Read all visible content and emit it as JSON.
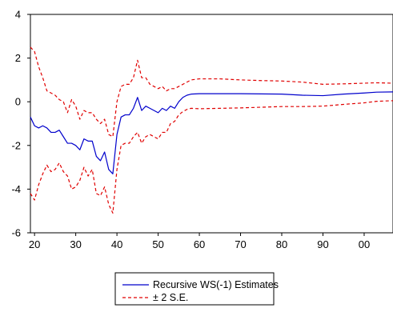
{
  "chart_data": {
    "type": "line",
    "title": "",
    "xlabel": "",
    "ylabel": "",
    "xlim": [
      1919,
      2007
    ],
    "ylim": [
      -6,
      4
    ],
    "x_tick_values": [
      1920,
      1930,
      1940,
      1950,
      1960,
      1970,
      1980,
      1990,
      2000
    ],
    "x_tick_labels": [
      "20",
      "30",
      "40",
      "50",
      "60",
      "70",
      "80",
      "90",
      "00"
    ],
    "y_tick_values": [
      -6,
      -4,
      -2,
      0,
      2,
      4
    ],
    "y_tick_labels": [
      "-6",
      "-4",
      "-2",
      "0",
      "2",
      "4"
    ],
    "grid": false,
    "legend_position": "bottom-center",
    "legend": [
      {
        "label": "Recursive WS(-1) Estimates",
        "color": "#0000cc",
        "dash": "solid"
      },
      {
        "label": "± 2 S.E.",
        "color": "#e00000",
        "dash": "dashed"
      }
    ],
    "series": [
      {
        "name": "Recursive WS(-1) Estimates",
        "color": "#0000cc",
        "points": [
          [
            1919,
            -0.7
          ],
          [
            1920,
            -1.1
          ],
          [
            1921,
            -1.2
          ],
          [
            1922,
            -1.1
          ],
          [
            1923,
            -1.2
          ],
          [
            1924,
            -1.4
          ],
          [
            1925,
            -1.4
          ],
          [
            1926,
            -1.3
          ],
          [
            1927,
            -1.6
          ],
          [
            1928,
            -1.9
          ],
          [
            1929,
            -1.9
          ],
          [
            1930,
            -2.0
          ],
          [
            1931,
            -2.2
          ],
          [
            1932,
            -1.7
          ],
          [
            1933,
            -1.8
          ],
          [
            1934,
            -1.8
          ],
          [
            1935,
            -2.5
          ],
          [
            1936,
            -2.7
          ],
          [
            1937,
            -2.3
          ],
          [
            1938,
            -3.1
          ],
          [
            1939,
            -3.3
          ],
          [
            1940,
            -1.5
          ],
          [
            1941,
            -0.7
          ],
          [
            1942,
            -0.6
          ],
          [
            1943,
            -0.6
          ],
          [
            1944,
            -0.3
          ],
          [
            1945,
            0.2
          ],
          [
            1946,
            -0.4
          ],
          [
            1947,
            -0.2
          ],
          [
            1948,
            -0.3
          ],
          [
            1949,
            -0.4
          ],
          [
            1950,
            -0.5
          ],
          [
            1951,
            -0.3
          ],
          [
            1952,
            -0.4
          ],
          [
            1953,
            -0.2
          ],
          [
            1954,
            -0.3
          ],
          [
            1955,
            0.0
          ],
          [
            1956,
            0.2
          ],
          [
            1957,
            0.3
          ],
          [
            1958,
            0.35
          ],
          [
            1960,
            0.37
          ],
          [
            1965,
            0.37
          ],
          [
            1970,
            0.37
          ],
          [
            1975,
            0.36
          ],
          [
            1980,
            0.35
          ],
          [
            1985,
            0.3
          ],
          [
            1990,
            0.28
          ],
          [
            1995,
            0.35
          ],
          [
            2000,
            0.4
          ],
          [
            2003,
            0.44
          ],
          [
            2007,
            0.45
          ]
        ]
      },
      {
        "name": "+2 S.E.",
        "color": "#e00000",
        "points": [
          [
            1919,
            2.5
          ],
          [
            1920,
            2.3
          ],
          [
            1921,
            1.6
          ],
          [
            1922,
            1.1
          ],
          [
            1923,
            0.5
          ],
          [
            1924,
            0.4
          ],
          [
            1925,
            0.3
          ],
          [
            1926,
            0.1
          ],
          [
            1927,
            0.0
          ],
          [
            1928,
            -0.5
          ],
          [
            1929,
            0.1
          ],
          [
            1930,
            -0.2
          ],
          [
            1931,
            -0.8
          ],
          [
            1932,
            -0.4
          ],
          [
            1933,
            -0.5
          ],
          [
            1934,
            -0.5
          ],
          [
            1935,
            -0.8
          ],
          [
            1936,
            -1.0
          ],
          [
            1937,
            -0.8
          ],
          [
            1938,
            -1.5
          ],
          [
            1939,
            -1.6
          ],
          [
            1940,
            0.0
          ],
          [
            1941,
            0.7
          ],
          [
            1942,
            0.8
          ],
          [
            1943,
            0.8
          ],
          [
            1944,
            1.1
          ],
          [
            1945,
            1.9
          ],
          [
            1946,
            1.1
          ],
          [
            1947,
            1.1
          ],
          [
            1948,
            0.8
          ],
          [
            1949,
            0.7
          ],
          [
            1950,
            0.6
          ],
          [
            1951,
            0.7
          ],
          [
            1952,
            0.5
          ],
          [
            1953,
            0.6
          ],
          [
            1954,
            0.6
          ],
          [
            1955,
            0.7
          ],
          [
            1956,
            0.8
          ],
          [
            1957,
            0.9
          ],
          [
            1958,
            1.0
          ],
          [
            1960,
            1.05
          ],
          [
            1965,
            1.05
          ],
          [
            1970,
            1.0
          ],
          [
            1975,
            0.97
          ],
          [
            1980,
            0.95
          ],
          [
            1985,
            0.9
          ],
          [
            1990,
            0.8
          ],
          [
            1995,
            0.82
          ],
          [
            2000,
            0.85
          ],
          [
            2003,
            0.87
          ],
          [
            2007,
            0.85
          ]
        ]
      },
      {
        "name": "-2 S.E.",
        "color": "#e00000",
        "points": [
          [
            1919,
            -4.2
          ],
          [
            1920,
            -4.5
          ],
          [
            1921,
            -3.8
          ],
          [
            1922,
            -3.3
          ],
          [
            1923,
            -2.9
          ],
          [
            1924,
            -3.2
          ],
          [
            1925,
            -3.1
          ],
          [
            1926,
            -2.8
          ],
          [
            1927,
            -3.2
          ],
          [
            1928,
            -3.4
          ],
          [
            1929,
            -4.0
          ],
          [
            1930,
            -3.9
          ],
          [
            1931,
            -3.6
          ],
          [
            1932,
            -3.0
          ],
          [
            1933,
            -3.4
          ],
          [
            1934,
            -3.1
          ],
          [
            1935,
            -4.2
          ],
          [
            1936,
            -4.3
          ],
          [
            1937,
            -3.9
          ],
          [
            1938,
            -4.7
          ],
          [
            1939,
            -5.1
          ],
          [
            1940,
            -3.1
          ],
          [
            1941,
            -2.0
          ],
          [
            1942,
            -1.9
          ],
          [
            1943,
            -1.9
          ],
          [
            1944,
            -1.6
          ],
          [
            1945,
            -1.4
          ],
          [
            1946,
            -1.9
          ],
          [
            1947,
            -1.6
          ],
          [
            1948,
            -1.5
          ],
          [
            1949,
            -1.6
          ],
          [
            1950,
            -1.7
          ],
          [
            1951,
            -1.4
          ],
          [
            1952,
            -1.4
          ],
          [
            1953,
            -1.0
          ],
          [
            1954,
            -0.9
          ],
          [
            1955,
            -0.6
          ],
          [
            1956,
            -0.45
          ],
          [
            1957,
            -0.35
          ],
          [
            1958,
            -0.3
          ],
          [
            1960,
            -0.32
          ],
          [
            1965,
            -0.3
          ],
          [
            1970,
            -0.28
          ],
          [
            1975,
            -0.25
          ],
          [
            1980,
            -0.22
          ],
          [
            1985,
            -0.22
          ],
          [
            1990,
            -0.2
          ],
          [
            1995,
            -0.12
          ],
          [
            2000,
            -0.05
          ],
          [
            2003,
            0.02
          ],
          [
            2007,
            0.05
          ]
        ]
      }
    ]
  }
}
